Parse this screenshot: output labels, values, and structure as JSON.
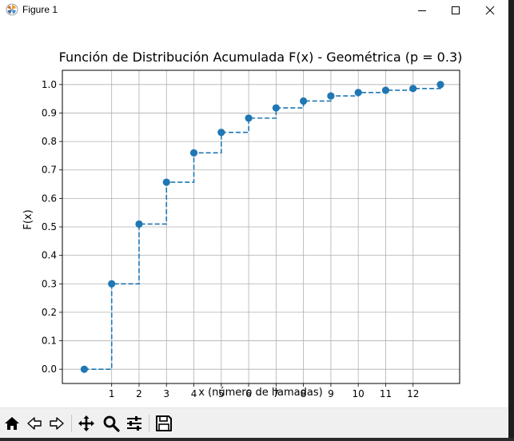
{
  "window": {
    "title": "Figure 1",
    "icon": "matplotlib-logo-icon",
    "controls": [
      "minimize-icon",
      "maximize-icon",
      "close-icon"
    ]
  },
  "toolbar": {
    "tools": [
      "home-icon",
      "back-arrow-icon",
      "forward-arrow-icon",
      "pan-move-icon",
      "zoom-magnifier-icon",
      "configure-subplots-icon",
      "save-disk-icon"
    ]
  },
  "chart_data": {
    "type": "line",
    "title": "Función de Distribución Acumulada F(x) - Geométrica (p = 0.3)",
    "xlabel": "x (número de llamadas)",
    "ylabel": "F(x)",
    "xlim": [
      -0.8,
      13.7
    ],
    "ylim": [
      -0.05,
      1.05
    ],
    "x_ticks": [
      1,
      2,
      3,
      4,
      5,
      6,
      7,
      8,
      9,
      10,
      11,
      12
    ],
    "y_ticks": [
      0.0,
      0.1,
      0.2,
      0.3,
      0.4,
      0.5,
      0.6,
      0.7,
      0.8,
      0.9,
      1.0
    ],
    "y_tick_labels": [
      "0.0",
      "0.1",
      "0.2",
      "0.3",
      "0.4",
      "0.5",
      "0.6",
      "0.7",
      "0.8",
      "0.9",
      "1.0"
    ],
    "grid": true,
    "line_style": "dashed-step",
    "color": "#1f77b4",
    "series": [
      {
        "x": [
          0,
          1,
          2,
          3,
          4,
          5,
          6,
          7,
          8,
          9,
          10,
          11,
          12,
          13
        ],
        "y": [
          0.0,
          0.3,
          0.51,
          0.657,
          0.76,
          0.832,
          0.882,
          0.918,
          0.942,
          0.96,
          0.972,
          0.98,
          0.986,
          1.0
        ]
      }
    ]
  }
}
